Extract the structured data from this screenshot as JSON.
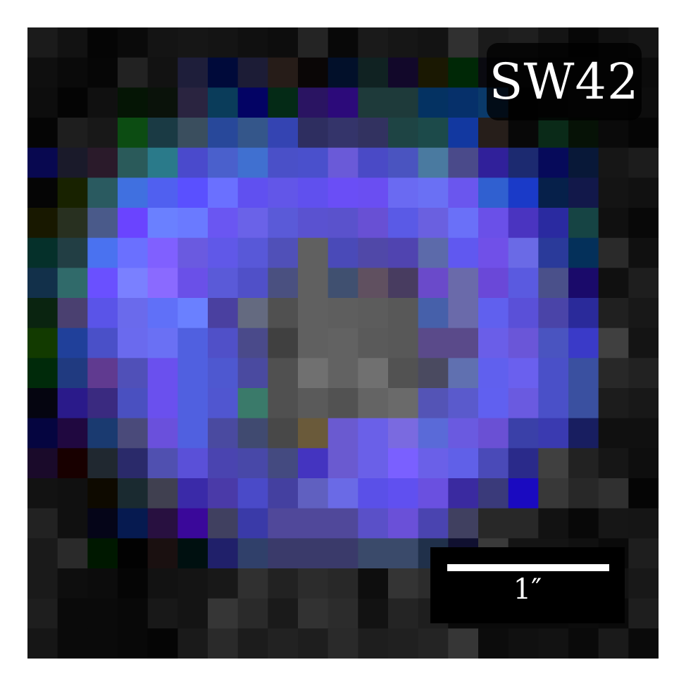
{
  "image": {
    "label": "SW42",
    "scalebar_label": "1″",
    "grid_size": 21,
    "pixels": [
      [
        "#1b1b1b",
        "#121212",
        "#050505",
        "#0a0a0a",
        "#141414",
        "#161616",
        "#141414",
        "#101010",
        "#0d0d0d",
        "#242424",
        "#080808",
        "#1a1a1a",
        "#161616",
        "#131313",
        "#303030",
        "#1b1b1b",
        "#1f1f1f",
        "#141414",
        "#070707",
        "#111111",
        "#151515"
      ],
      [
        "#0f0f0f",
        "#0a0a0a",
        "#060606",
        "#222222",
        "#121212",
        "#1e1e3a",
        "#000a3a",
        "#1c1c36",
        "#261c18",
        "#0a0606",
        "#02102a",
        "#102222",
        "#12082a",
        "#1a1802",
        "#002806",
        "#0a0a10",
        "#111111",
        "#0b0b0b",
        "#0c0c0c",
        "#0e0e0e",
        "#0b0b0b"
      ],
      [
        "#0d0d0d",
        "#040404",
        "#101010",
        "#051505",
        "#0a120a",
        "#2a2440",
        "#0a3c5a",
        "#030364",
        "#042a16",
        "#2a1462",
        "#2c0a7a",
        "#1e3a3a",
        "#1e3a3a",
        "#043262",
        "#06306a",
        "#0a3a6a",
        "#070707",
        "#0a0a0a",
        "#101010",
        "#0e0e0e",
        "#0d0d0d"
      ],
      [
        "#050505",
        "#1e1e1e",
        "#181818",
        "#0c4c12",
        "#1a3a44",
        "#3a4e5e",
        "#28489a",
        "#34568a",
        "#3444b2",
        "#2e2e60",
        "#34346a",
        "#323260",
        "#1e4444",
        "#1c4a4a",
        "#1238a0",
        "#261e1a",
        "#080808",
        "#0a2a18",
        "#061206",
        "#0a0a0a",
        "#050505"
      ],
      [
        "#080850",
        "#1a1a2a",
        "#2a1a2a",
        "#2a5a5a",
        "#2a7a8a",
        "#4a4acc",
        "#4a60cc",
        "#4070d0",
        "#4a50c8",
        "#4a50cc",
        "#6a5ad8",
        "#4a4ac6",
        "#4a54c0",
        "#4a7aa0",
        "#4a4a8a",
        "#30209a",
        "#1c2a70",
        "#060a5a",
        "#081838",
        "#161616",
        "#1c1c1c"
      ],
      [
        "#050505",
        "#182200",
        "#2a5a60",
        "#4070e0",
        "#5060f0",
        "#5a50ff",
        "#6a70ff",
        "#6050f0",
        "#6256e8",
        "#6050ee",
        "#6a4ef6",
        "#6a4ef2",
        "#6a6af2",
        "#6a70f4",
        "#6a56ee",
        "#3060d0",
        "#1a3ac8",
        "#06204a",
        "#12184a",
        "#141414",
        "#111111"
      ],
      [
        "#181800",
        "#283020",
        "#4a5a8a",
        "#6a44ff",
        "#6a80ff",
        "#6a7aff",
        "#6a56f2",
        "#6a62e8",
        "#5a5ad8",
        "#5a52d0",
        "#5a52cc",
        "#6850d4",
        "#5a5ae6",
        "#6a60e0",
        "#6a70f8",
        "#6a50e8",
        "#4a34c0",
        "#2a2aa0",
        "#164444",
        "#101010",
        "#080808"
      ],
      [
        "#05302a",
        "#223e44",
        "#4a72f0",
        "#6a70ff",
        "#8060ff",
        "#6a5ae0",
        "#6058e8",
        "#5858d8",
        "#5050b8",
        "#606060",
        "#4a4ab8",
        "#5048a8",
        "#5044b0",
        "#5c6aaa",
        "#6058f0",
        "#7050e8",
        "#6a6ae6",
        "#2a3a9a",
        "#04305a",
        "#2a2a2a",
        "#101010"
      ],
      [
        "#12304a",
        "#306a6a",
        "#6a50ff",
        "#7a80ff",
        "#8a6aff",
        "#6a50e8",
        "#5a5ad8",
        "#5050c8",
        "#4a5080",
        "#606060",
        "#405070",
        "#605060",
        "#483c60",
        "#6a4aca",
        "#6a6aaa",
        "#6a48d8",
        "#5a5ae0",
        "#4a508a",
        "#1a0a6a",
        "#101010",
        "#1e1e1e"
      ],
      [
        "#0a2410",
        "#4a4070",
        "#5a54e8",
        "#6a6aec",
        "#6070f8",
        "#6a80ff",
        "#4a40a0",
        "#646a80",
        "#505050",
        "#606060",
        "#5e5e5e",
        "#5c5c5c",
        "#585858",
        "#4660aa",
        "#6a6aaa",
        "#6060ee",
        "#5a50d8",
        "#4a44a8",
        "#2a2a9a",
        "#202020",
        "#181818"
      ],
      [
        "#123a00",
        "#20409a",
        "#4a50c8",
        "#6a6aee",
        "#6a70f4",
        "#5060e0",
        "#5050c8",
        "#4a4a8a",
        "#404040",
        "#606060",
        "#626262",
        "#5a5a5a",
        "#585858",
        "#5a4a8a",
        "#5a4a8a",
        "#6a5ee8",
        "#6a56d8",
        "#4a54c0",
        "#3a3ac8",
        "#404040",
        "#141414"
      ],
      [
        "#002a0a",
        "#203a80",
        "#603a90",
        "#5050b8",
        "#6a50ee",
        "#5060e0",
        "#4e58d0",
        "#4a4aa0",
        "#505050",
        "#707070",
        "#626262",
        "#707070",
        "#525252",
        "#4a4a60",
        "#6070b0",
        "#6060ee",
        "#6a60ee",
        "#4a50c8",
        "#3a50a0",
        "#282828",
        "#222222"
      ],
      [
        "#050510",
        "#2a1a8a",
        "#3a2a80",
        "#4a50c0",
        "#6a50ee",
        "#5060e0",
        "#5056d0",
        "#3a7a6a",
        "#505050",
        "#5a5a5a",
        "#525252",
        "#646464",
        "#6a6a6a",
        "#5454b6",
        "#5a5acc",
        "#6060f0",
        "#6a5ae0",
        "#4a50c8",
        "#3a50a0",
        "#1c1c1c",
        "#181818"
      ],
      [
        "#050540",
        "#200840",
        "#1a3a70",
        "#4a4a7a",
        "#6a50dc",
        "#5060e0",
        "#4a4aa0",
        "#404a70",
        "#484848",
        "#6a5a3a",
        "#6a5ad0",
        "#6a60e8",
        "#7a6ae0",
        "#5a6ad8",
        "#6a5ae0",
        "#6a50d4",
        "#3a40a8",
        "#3a3ab0",
        "#181e60",
        "#101010",
        "#101010"
      ],
      [
        "#1a0a2a",
        "#180000",
        "#202830",
        "#2a2a6a",
        "#5050b0",
        "#5a50d8",
        "#4a44b0",
        "#4848a8",
        "#444a80",
        "#4434c0",
        "#6a5ad0",
        "#6a60e8",
        "#7a60ff",
        "#6a60e8",
        "#6060e8",
        "#4a4ab8",
        "#2a2a8a",
        "#404040",
        "#222222",
        "#161616",
        "#0e0e0e"
      ],
      [
        "#121212",
        "#101010",
        "#0e0a00",
        "#1a2a30",
        "#404050",
        "#3a2aa8",
        "#4a3aa8",
        "#4a4ac8",
        "#4440a0",
        "#6060c0",
        "#6a6ae6",
        "#5a50e8",
        "#6050f0",
        "#6a50e0",
        "#3a2aa0",
        "#3a3a7a",
        "#1a0ac0",
        "#383838",
        "#282828",
        "#303030",
        "#050505"
      ],
      [
        "#222222",
        "#101010",
        "#050518",
        "#061a50",
        "#281040",
        "#3a089a",
        "#404060",
        "#3a3aa8",
        "#50489a",
        "#50489a",
        "#50489a",
        "#5a50c8",
        "#6a50d8",
        "#4a44b0",
        "#404060",
        "#282828",
        "#282828",
        "#121212",
        "#080808",
        "#161616",
        "#151515"
      ],
      [
        "#1a1a1a",
        "#2a2a2a",
        "#001800",
        "#020202",
        "#1a1010",
        "#001010",
        "#20206a",
        "#30406a",
        "#3a3a6a",
        "#3a3a6a",
        "#3a3a6a",
        "#3a4a6a",
        "#3a4a6a",
        "#20304a",
        "#101030",
        "#3a3a3a",
        "#141414",
        "#141414",
        "#101010",
        "#0a0a0a",
        "#1e1e1e"
      ],
      [
        "#1a1a1a",
        "#0e0e0e",
        "#0c0c0c",
        "#050505",
        "#121212",
        "#141414",
        "#181818",
        "#303030",
        "#222222",
        "#2c2c2c",
        "#282828",
        "#0e0e0e",
        "#343434",
        "#2c2c2c",
        "#080808",
        "#0a0a0a",
        "#0a0a0a",
        "#0a0a0a",
        "#0a0a0a",
        "#121212",
        "#181818"
      ],
      [
        "#1e1e1e",
        "#0a0a0a",
        "#0a0a0a",
        "#080808",
        "#181818",
        "#141414",
        "#363636",
        "#2a2a2a",
        "#1a1a1a",
        "#323232",
        "#2c2c2c",
        "#121212",
        "#242424",
        "#1e1e1e",
        "#0a0a0a",
        "#0a0a0a",
        "#0a0a0a",
        "#0a0a0a",
        "#0c0c0c",
        "#0a0a0a",
        "#1e1e1e"
      ],
      [
        "#161616",
        "#0a0a0a",
        "#0a0a0a",
        "#080808",
        "#050505",
        "#1a1a1a",
        "#2a2a2a",
        "#1c1c1c",
        "#222222",
        "#1e1e1e",
        "#2a2a2a",
        "#1e1e1e",
        "#202020",
        "#242424",
        "#363636",
        "#0c0c0c",
        "#101010",
        "#121212",
        "#0a0a0a",
        "#1a1a1a",
        "#0a0a0a"
      ]
    ]
  }
}
